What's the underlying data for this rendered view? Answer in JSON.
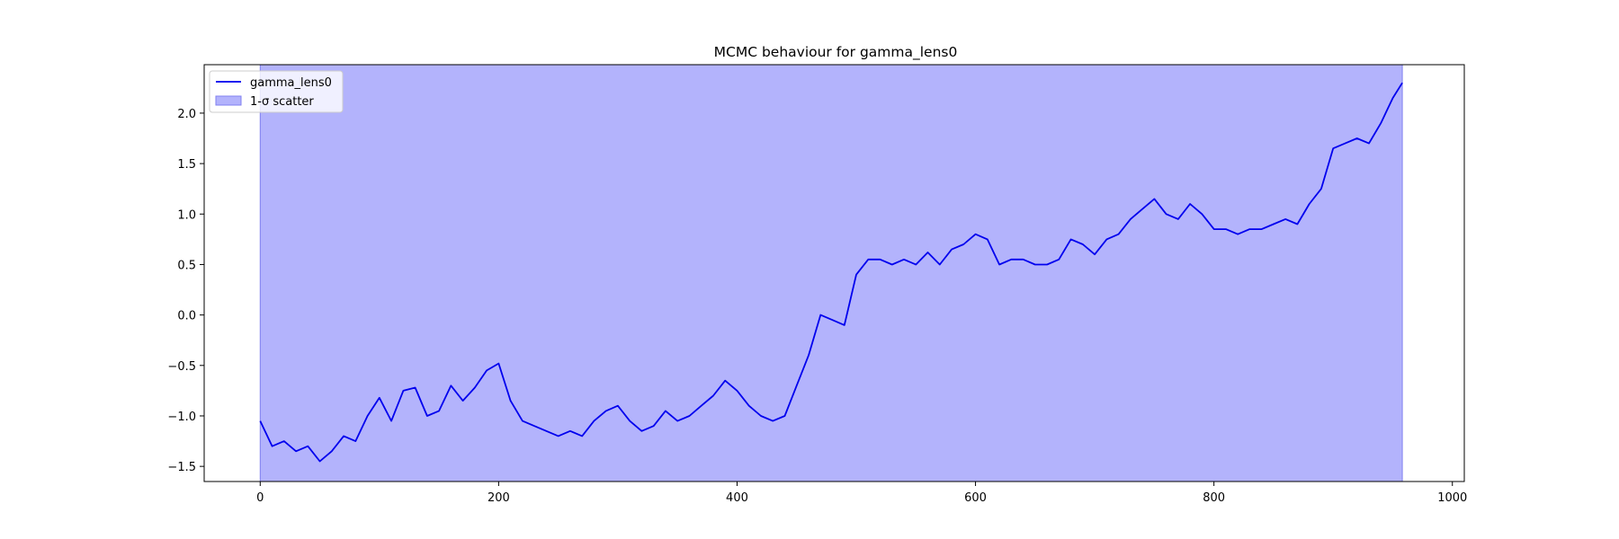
{
  "chart_data": {
    "type": "line",
    "title": "MCMC behaviour for gamma_lens0",
    "xlabel": "",
    "ylabel": "",
    "xlim": [
      -47,
      1010
    ],
    "ylim": [
      -1.65,
      2.48
    ],
    "xticks": [
      0,
      200,
      400,
      600,
      800,
      1000
    ],
    "yticks": [
      -1.5,
      -1.0,
      -0.5,
      0.0,
      0.5,
      1.0,
      1.5,
      2.0
    ],
    "xtick_labels": [
      "0",
      "200",
      "400",
      "600",
      "800",
      "1000"
    ],
    "ytick_labels": [
      "−1.5",
      "−1.0",
      "−0.5",
      "0.0",
      "0.5",
      "1.0",
      "1.5",
      "2.0"
    ],
    "legend_position": "upper-left",
    "legend": [
      {
        "label": "gamma_lens0",
        "kind": "line"
      },
      {
        "label": "1-σ scatter",
        "kind": "patch"
      }
    ],
    "series": [
      {
        "name": "gamma_lens0",
        "color": "#0000ee",
        "x": [
          0,
          10,
          20,
          30,
          40,
          50,
          60,
          70,
          80,
          90,
          100,
          110,
          120,
          130,
          140,
          150,
          160,
          170,
          180,
          190,
          200,
          210,
          220,
          230,
          240,
          250,
          260,
          270,
          280,
          290,
          300,
          310,
          320,
          330,
          340,
          350,
          360,
          370,
          380,
          390,
          400,
          410,
          420,
          430,
          440,
          450,
          460,
          470,
          480,
          490,
          500,
          510,
          520,
          530,
          540,
          550,
          560,
          570,
          580,
          590,
          600,
          610,
          620,
          630,
          640,
          650,
          660,
          670,
          680,
          690,
          700,
          710,
          720,
          730,
          740,
          750,
          760,
          770,
          780,
          790,
          800,
          810,
          820,
          830,
          840,
          850,
          860,
          870,
          880,
          890,
          900,
          910,
          920,
          930,
          940,
          950,
          958
        ],
        "y": [
          -1.05,
          -1.3,
          -1.25,
          -1.35,
          -1.3,
          -1.45,
          -1.35,
          -1.2,
          -1.25,
          -1.0,
          -0.82,
          -1.05,
          -0.75,
          -0.72,
          -1.0,
          -0.95,
          -0.7,
          -0.85,
          -0.72,
          -0.55,
          -0.48,
          -0.85,
          -1.05,
          -1.1,
          -1.15,
          -1.2,
          -1.15,
          -1.2,
          -1.05,
          -0.95,
          -0.9,
          -1.05,
          -1.15,
          -1.1,
          -0.95,
          -1.05,
          -1.0,
          -0.9,
          -0.8,
          -0.65,
          -0.75,
          -0.9,
          -1.0,
          -1.05,
          -1.0,
          -0.7,
          -0.4,
          0.0,
          -0.05,
          -0.1,
          0.4,
          0.55,
          0.55,
          0.5,
          0.55,
          0.5,
          0.62,
          0.5,
          0.65,
          0.7,
          0.8,
          0.75,
          0.5,
          0.55,
          0.55,
          0.5,
          0.5,
          0.55,
          0.75,
          0.7,
          0.6,
          0.75,
          0.8,
          0.95,
          1.05,
          1.15,
          1.0,
          0.95,
          1.1,
          1.0,
          0.85,
          0.85,
          0.8,
          0.85,
          0.85,
          0.9,
          0.95,
          0.9,
          1.1,
          1.25,
          1.65,
          1.7,
          1.75,
          1.7,
          1.9,
          2.15,
          2.3
        ],
        "band": [
          -1.65,
          2.48
        ],
        "band_xrange": [
          0,
          958
        ],
        "band_color": "#b3b3fc"
      }
    ]
  }
}
